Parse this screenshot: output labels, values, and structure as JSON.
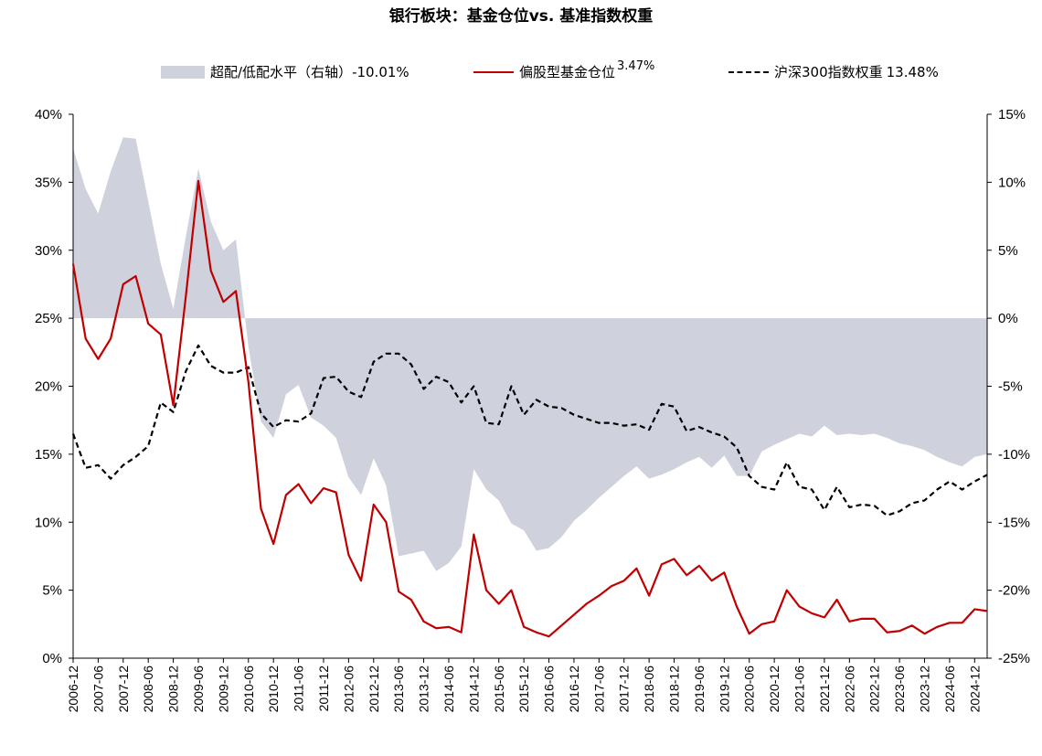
{
  "colors": {
    "area": "#cfd2dc",
    "fund": "#c00000",
    "index": "#000000",
    "axis": "#000000"
  },
  "chart_data": {
    "type": "line",
    "title": "银行板块：基金仓位vs. 基准指数权重",
    "legend_placement": "top",
    "grid": false,
    "left_axis": {
      "ylim": [
        0,
        40
      ],
      "ticks": [
        "0%",
        "5%",
        "10%",
        "15%",
        "20%",
        "25%",
        "30%",
        "35%",
        "40%"
      ]
    },
    "right_axis": {
      "ylim": [
        -25,
        15
      ],
      "ticks": [
        "-25%",
        "-20%",
        "-15%",
        "-10%",
        "-5%",
        "0%",
        "5%",
        "10%",
        "15%"
      ]
    },
    "x_tick_labels": [
      "2006-12",
      "2007-06",
      "2007-12",
      "2008-06",
      "2008-12",
      "2009-06",
      "2009-12",
      "2010-06",
      "2010-12",
      "2011-06",
      "2011-12",
      "2012-06",
      "2012-12",
      "2013-06",
      "2013-12",
      "2014-06",
      "2014-12",
      "2015-06",
      "2015-12",
      "2016-06",
      "2016-12",
      "2017-06",
      "2017-12",
      "2018-06",
      "2018-12",
      "2019-06",
      "2019-12",
      "2020-06",
      "2020-12",
      "2021-06",
      "2021-12",
      "2022-06",
      "2022-12",
      "2023-06",
      "2023-12",
      "2024-06",
      "2024-12"
    ],
    "x": [
      "2006-12",
      "2007-03",
      "2007-06",
      "2007-09",
      "2007-12",
      "2008-03",
      "2008-06",
      "2008-09",
      "2008-12",
      "2009-03",
      "2009-06",
      "2009-09",
      "2009-12",
      "2010-03",
      "2010-06",
      "2010-09",
      "2010-12",
      "2011-03",
      "2011-06",
      "2011-09",
      "2011-12",
      "2012-03",
      "2012-06",
      "2012-09",
      "2012-12",
      "2013-03",
      "2013-06",
      "2013-09",
      "2013-12",
      "2014-03",
      "2014-06",
      "2014-09",
      "2014-12",
      "2015-03",
      "2015-06",
      "2015-09",
      "2015-12",
      "2016-03",
      "2016-06",
      "2016-09",
      "2016-12",
      "2017-03",
      "2017-06",
      "2017-09",
      "2017-12",
      "2018-03",
      "2018-06",
      "2018-09",
      "2018-12",
      "2019-03",
      "2019-06",
      "2019-09",
      "2019-12",
      "2020-03",
      "2020-06",
      "2020-09",
      "2020-12",
      "2021-03",
      "2021-06",
      "2021-09",
      "2021-12",
      "2022-03",
      "2022-06",
      "2022-09",
      "2022-12",
      "2023-03",
      "2023-06",
      "2023-09",
      "2023-12",
      "2024-03",
      "2024-06",
      "2024-09",
      "2024-12",
      "2025-03"
    ],
    "series": [
      {
        "name": "超配/低配水平（右轴）",
        "label": "-10.01%",
        "type": "area",
        "axis": "right",
        "values": [
          12.5,
          9.5,
          7.7,
          10.8,
          13.3,
          13.2,
          8.6,
          4.0,
          0.7,
          6.0,
          11.0,
          7.1,
          5.0,
          5.8,
          -2.1,
          -7.6,
          -8.8,
          -5.6,
          -4.9,
          -7.3,
          -7.9,
          -8.8,
          -11.7,
          -13.0,
          -10.3,
          -12.3,
          -17.5,
          -17.3,
          -17.1,
          -18.6,
          -18.0,
          -16.8,
          -11.1,
          -12.6,
          -13.4,
          -15.1,
          -15.6,
          -17.1,
          -16.9,
          -16.1,
          -14.9,
          -14.1,
          -13.2,
          -12.4,
          -11.6,
          -10.9,
          -11.8,
          -11.5,
          -11.1,
          -10.6,
          -10.2,
          -11.0,
          -10.1,
          -11.6,
          -11.6,
          -9.8,
          -9.3,
          -8.9,
          -8.5,
          -8.7,
          -7.9,
          -8.6,
          -8.5,
          -8.6,
          -8.5,
          -8.8,
          -9.2,
          -9.4,
          -9.7,
          -10.2,
          -10.6,
          -10.9,
          -10.2,
          -10.0
        ]
      },
      {
        "name": "偏股型基金仓位",
        "label": "3.47%",
        "type": "line",
        "axis": "left",
        "values": [
          29.0,
          23.5,
          22.0,
          23.5,
          27.5,
          28.1,
          24.6,
          23.8,
          18.6,
          26.6,
          35.1,
          28.5,
          26.2,
          27.0,
          20.3,
          11.0,
          8.4,
          12.0,
          12.8,
          11.4,
          12.5,
          12.2,
          7.6,
          5.7,
          11.3,
          10.0,
          4.9,
          4.3,
          2.7,
          2.2,
          2.3,
          1.9,
          9.1,
          5.0,
          4.0,
          5.0,
          2.3,
          1.9,
          1.6,
          2.4,
          3.2,
          4.0,
          4.6,
          5.3,
          5.7,
          6.6,
          4.6,
          6.9,
          7.3,
          6.1,
          6.8,
          5.7,
          6.3,
          3.8,
          1.8,
          2.5,
          2.7,
          5.0,
          3.8,
          3.3,
          3.0,
          4.3,
          2.7,
          2.9,
          2.9,
          1.9,
          2.0,
          2.4,
          1.8,
          2.3,
          2.6,
          2.6,
          3.6,
          3.47
        ]
      },
      {
        "name": "沪深300指数权重",
        "label": "13.48%",
        "type": "line",
        "style": "dashed",
        "axis": "left",
        "values": [
          16.5,
          14.0,
          14.2,
          13.2,
          14.2,
          14.8,
          15.6,
          18.8,
          18.1,
          21.1,
          23.0,
          21.5,
          21.0,
          21.0,
          21.4,
          18.0,
          17.0,
          17.5,
          17.4,
          18.0,
          20.6,
          20.7,
          19.6,
          19.2,
          21.8,
          22.4,
          22.4,
          21.6,
          19.8,
          20.7,
          20.3,
          18.8,
          20.0,
          17.3,
          17.2,
          20.0,
          17.9,
          19.0,
          18.5,
          18.4,
          17.9,
          17.6,
          17.3,
          17.3,
          17.1,
          17.2,
          16.8,
          18.7,
          18.5,
          16.7,
          17.0,
          16.6,
          16.3,
          15.5,
          13.4,
          12.6,
          12.4,
          14.4,
          12.6,
          12.4,
          10.9,
          12.6,
          11.1,
          11.3,
          11.2,
          10.5,
          10.8,
          11.4,
          11.6,
          12.4,
          13.0,
          12.4,
          13.0,
          13.48
        ]
      }
    ]
  }
}
